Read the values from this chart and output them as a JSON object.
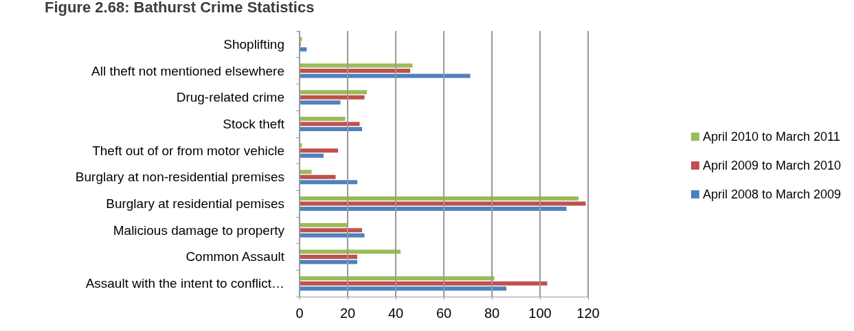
{
  "chart_data": {
    "type": "bar",
    "orientation": "horizontal",
    "title": "Figure 2.68: Bathurst Crime Statistics",
    "categories": [
      "Shoplifting",
      "All theft not mentioned elsewhere",
      "Drug-related crime",
      "Stock theft",
      "Theft out of or from motor vehicle",
      "Burglary at non-residential premises",
      "Burglary at residential pemises",
      "Malicious damage to property",
      "Common Assault",
      "Assault with the intent to conflict…"
    ],
    "series": [
      {
        "name": "April 2010 to March 2011",
        "color": "#9bbb59",
        "values": [
          1,
          47,
          28,
          19,
          1,
          5,
          116,
          20,
          42,
          81
        ]
      },
      {
        "name": "April 2009 to March 2010",
        "color": "#c0504d",
        "values": [
          0.5,
          46,
          27,
          25,
          16,
          15,
          119,
          26,
          24,
          103
        ]
      },
      {
        "name": "April 2008 to March 2009",
        "color": "#4f81bd",
        "values": [
          3,
          71,
          17,
          26,
          10,
          24,
          111,
          27,
          24,
          86
        ]
      }
    ],
    "xlim": [
      0,
      120
    ],
    "xticks": [
      0,
      20,
      40,
      60,
      80,
      100,
      120
    ],
    "grid": "x",
    "legend": "right"
  }
}
